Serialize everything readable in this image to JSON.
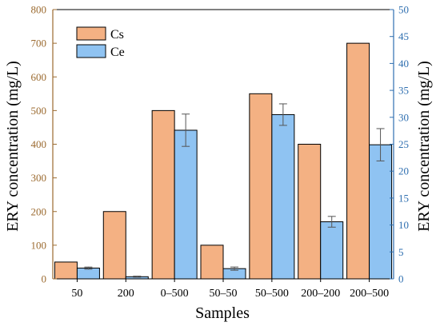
{
  "chart_data": {
    "type": "bar",
    "categories": [
      "50",
      "200",
      "0–500",
      "50–50",
      "50–500",
      "200–200",
      "200–500"
    ],
    "series": [
      {
        "name": "Cs",
        "axis": "left",
        "color": "#f4b183",
        "values": [
          50,
          200,
          500,
          100,
          550,
          400,
          700
        ],
        "errors": [
          0,
          0,
          0,
          0,
          0,
          0,
          0
        ]
      },
      {
        "name": "Ce",
        "axis": "right",
        "color": "#8fc3f2",
        "values": [
          2.0,
          0.4,
          27.6,
          1.9,
          30.5,
          10.6,
          24.9
        ],
        "errors": [
          0.2,
          0.1,
          3.0,
          0.3,
          2.0,
          1.0,
          3.0
        ]
      }
    ],
    "xlabel": "Samples",
    "ylabel_left": "ERY concentration (mg/L)",
    "ylabel_right": "ERY concentration (mg/L)",
    "ylim_left": [
      0,
      800
    ],
    "ylim_right": [
      0,
      50
    ],
    "yticks_left": [
      "0",
      "100",
      "200",
      "300",
      "400",
      "500",
      "600",
      "700",
      "800"
    ],
    "yticks_right": [
      "0",
      "5",
      "10",
      "15",
      "20",
      "25",
      "30",
      "35",
      "40",
      "45",
      "50"
    ],
    "legend_position": "top-left",
    "grid": false,
    "colors": {
      "left_axis": "#9b6a2f",
      "right_axis": "#2f6fb0",
      "cs_bar": "#f4b183",
      "ce_bar": "#8fc3f2"
    }
  }
}
